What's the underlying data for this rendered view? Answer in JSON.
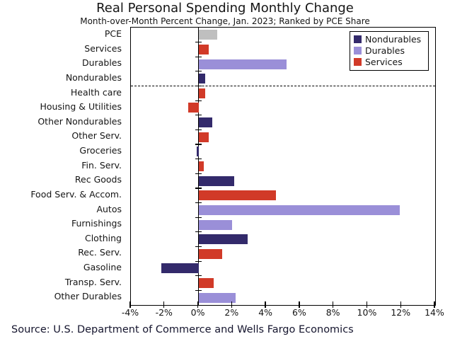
{
  "title": "Real Personal Spending Monthly Change",
  "subtitle": "Month-over-Month Percent Change, Jan. 2023; Ranked by PCE Share",
  "source_note": "Source: U.S. Department of Commerce and Wells Fargo Economics",
  "colors": {
    "nondurables": "#332A6B",
    "durables": "#9A8FD8",
    "services": "#D13A28",
    "pce": "#BFBFBF",
    "axis": "#000000"
  },
  "legend": {
    "position": "top-right",
    "items": [
      {
        "label": "Nondurables",
        "color_key": "nondurables"
      },
      {
        "label": "Durables",
        "color_key": "durables"
      },
      {
        "label": "Services",
        "color_key": "services"
      }
    ]
  },
  "chart_data": {
    "type": "bar",
    "orientation": "horizontal",
    "title": "Real Personal Spending Monthly Change",
    "subtitle": "Month-over-Month Percent Change, Jan. 2023; Ranked by PCE Share",
    "unit": "%",
    "xlim": [
      -4,
      14
    ],
    "x_tick_values": [
      -4,
      -2,
      0,
      2,
      4,
      6,
      8,
      10,
      12,
      14
    ],
    "x_tick_labels": [
      "-4%",
      "-2%",
      "0%",
      "2%",
      "4%",
      "6%",
      "8%",
      "10%",
      "12%",
      "14%"
    ],
    "grid": false,
    "legend_position": "top-right",
    "separator_after_index": 3,
    "bars": [
      {
        "category": "PCE",
        "value": 1.1,
        "group": "pce"
      },
      {
        "category": "Services",
        "value": 0.6,
        "group": "services"
      },
      {
        "category": "Durables",
        "value": 5.2,
        "group": "durables"
      },
      {
        "category": "Nondurables",
        "value": 0.4,
        "group": "nondurables"
      },
      {
        "category": "Health care",
        "value": 0.4,
        "group": "services"
      },
      {
        "category": "Housing & Utilities",
        "value": -0.6,
        "group": "services"
      },
      {
        "category": "Other Nondurables",
        "value": 0.8,
        "group": "nondurables"
      },
      {
        "category": "Other Serv.",
        "value": 0.6,
        "group": "services"
      },
      {
        "category": "Groceries",
        "value": -0.1,
        "group": "nondurables"
      },
      {
        "category": "Fin. Serv.",
        "value": 0.3,
        "group": "services"
      },
      {
        "category": "Rec Goods",
        "value": 2.1,
        "group": "nondurables"
      },
      {
        "category": "Food Serv. & Accom.",
        "value": 4.6,
        "group": "services"
      },
      {
        "category": "Autos",
        "value": 11.9,
        "group": "durables"
      },
      {
        "category": "Furnishings",
        "value": 2.0,
        "group": "durables"
      },
      {
        "category": "Clothing",
        "value": 2.9,
        "group": "nondurables"
      },
      {
        "category": "Rec. Serv.",
        "value": 1.4,
        "group": "services"
      },
      {
        "category": "Gasoline",
        "value": -2.2,
        "group": "nondurables"
      },
      {
        "category": "Transp. Serv.",
        "value": 0.9,
        "group": "services"
      },
      {
        "category": "Other Durables",
        "value": 2.2,
        "group": "durables"
      }
    ]
  }
}
